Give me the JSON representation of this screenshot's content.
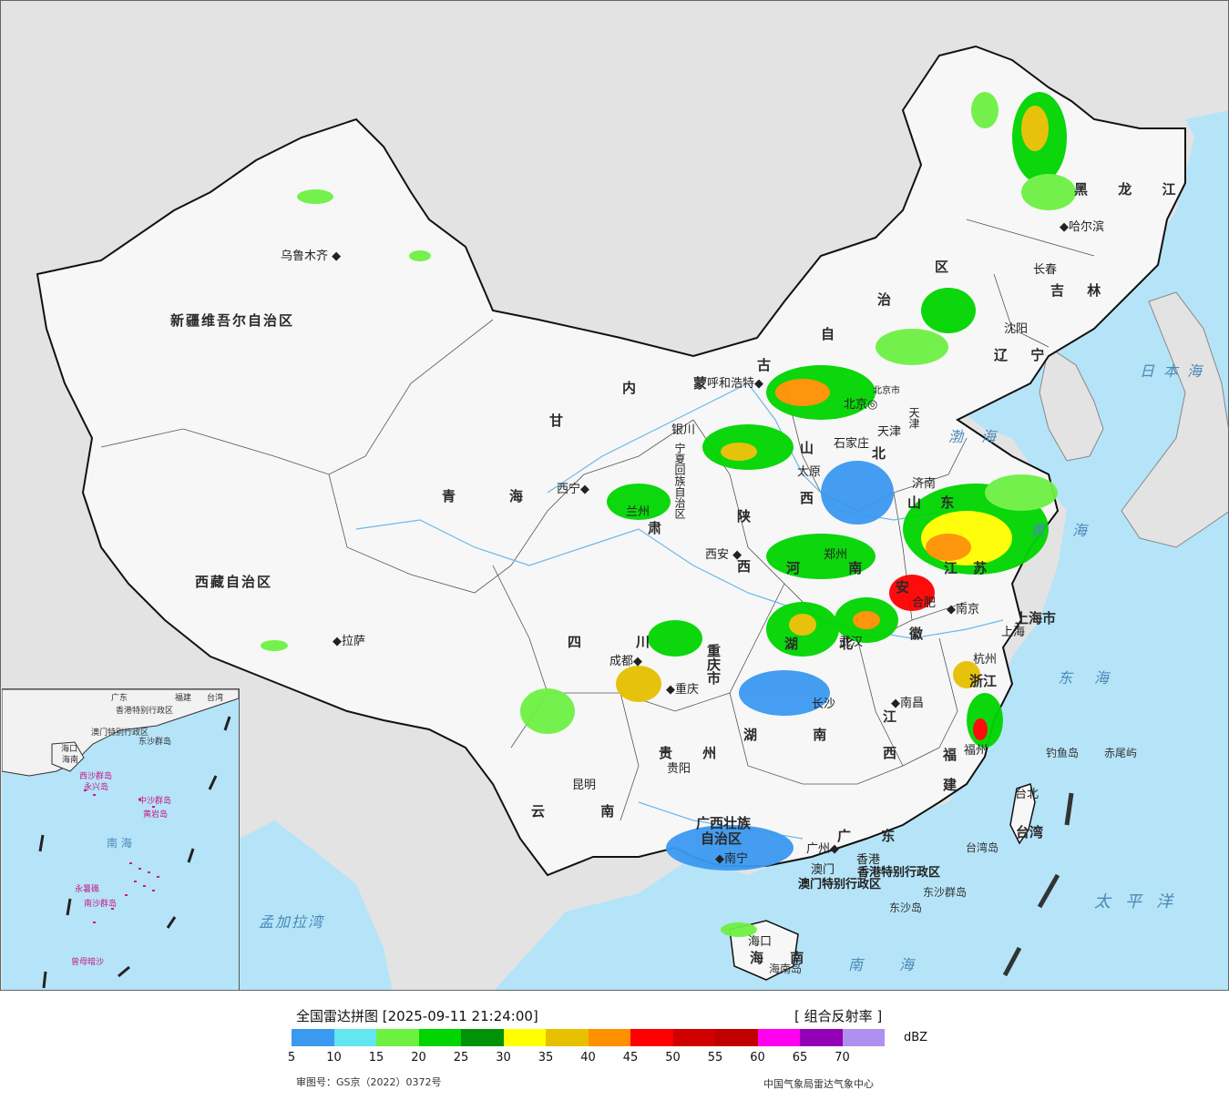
{
  "map": {
    "provinces": {
      "xinjiang": "新疆维吾尔自治区",
      "tibet": "西藏自治区",
      "qinghai_1": "青",
      "qinghai_2": "海",
      "gansu_1": "甘",
      "gansu_2": "肃",
      "nmg_1": "内",
      "nmg_2": "蒙",
      "nmg_3": "古",
      "nmg_4": "自",
      "nmg_5": "治",
      "nmg_6": "区",
      "heilongjiang": "黑 龙 江",
      "jilin": "吉 林",
      "liaoning": "辽 宁",
      "hebei": "北",
      "shanxi_1": "山",
      "shanxi_2": "西",
      "shaanxi_1": "陕",
      "shaanxi_2": "西",
      "shandong": "山 东",
      "henan": "河 南",
      "jiangsu": "江 苏",
      "anhui_1": "安",
      "anhui_2": "徽",
      "hubei": "湖 北",
      "sichuan_1": "四",
      "sichuan_2": "川",
      "chongqing": "重庆市",
      "hunan": "湖 南",
      "jiangxi_1": "江",
      "jiangxi_2": "西",
      "zhejiang": "浙江",
      "fujian_1": "福",
      "fujian_2": "建",
      "guizhou": "贵 州",
      "yunnan": "云 南",
      "guangxi_1": "广西壮族",
      "guangxi_2": "自治区",
      "guangdong": "广 东",
      "hainan": "海 南",
      "taiwan": "台湾",
      "shanghai": "上海市",
      "hongkong": "香港特别行政区",
      "macau": "澳门特别行政区",
      "ningxia": "宁夏回族自治区",
      "beijing": "北京市",
      "tianjin": "天津"
    },
    "cities": {
      "urumqi": "乌鲁木齐",
      "lhasa": "拉萨",
      "xining": "西宁",
      "yinchuan": "银川",
      "lanzhou": "兰州",
      "hohhot": "呼和浩特",
      "beijing": "北京",
      "tianjin": "天津",
      "shijiazhuang": "石家庄",
      "taiyuan": "太原",
      "jinan": "济南",
      "xian": "西安",
      "zhengzhou": "郑州",
      "hefei": "合肥",
      "nanjing": "南京",
      "shanghai": "上海",
      "hangzhou": "杭州",
      "wuhan": "武汉",
      "chengdu": "成都",
      "chongqing": "重庆",
      "changsha": "长沙",
      "nanchang": "南昌",
      "fuzhou": "福州",
      "guiyang": "贵阳",
      "kunming": "昆明",
      "nanning": "南宁",
      "guangzhou": "广州",
      "hongkong": "香港",
      "macau": "澳门",
      "haikou": "海口",
      "taipei": "台北",
      "shenyang": "沈阳",
      "changchun": "长春",
      "harbin": "哈尔滨"
    },
    "islands": {
      "diaoyu": "钓鱼岛",
      "chiwei": "赤尾屿",
      "taiwan_island": "台湾岛",
      "dongsha_qundao": "东沙群岛",
      "dongsha_dao": "东沙岛",
      "hainan_dao": "海南岛"
    },
    "seas": {
      "japan_sea": "日本海",
      "bohai": "渤海",
      "yellow_sea": "黄海",
      "east_sea": "东海",
      "pacific": "太平洋",
      "south_sea": "南海",
      "bay_bengal": "孟加拉湾"
    },
    "inset": {
      "guangdong": "广东",
      "fujian": "福建",
      "taiwan": "台湾",
      "hk": "香港特别行政区",
      "mo": "澳门特别行政区",
      "dongsha": "东沙群岛",
      "haikou": "海口",
      "hainan": "海南",
      "xisha": "西沙群岛",
      "yongxing": "永兴岛",
      "zhongsha": "中沙群岛",
      "huangyan": "黄岩岛",
      "nanhai": "南 海",
      "yongshu": "永暑礁",
      "nansha": "南沙群岛",
      "zengmu": "曾母暗沙"
    }
  },
  "legend": {
    "title": "全国雷达拼图 [2025-09-11 21:24:00]",
    "product": "[ 组合反射率 ]",
    "unit": "dBZ",
    "colors": [
      "#3b99f0",
      "#62e6f0",
      "#6ef043",
      "#00d500",
      "#00930a",
      "#ffff00",
      "#e7c000",
      "#ff9000",
      "#ff0000",
      "#d00000",
      "#c00000",
      "#ff00f0",
      "#9400b4",
      "#ad90f0"
    ],
    "ticks": [
      "5",
      "10",
      "15",
      "20",
      "25",
      "30",
      "35",
      "40",
      "45",
      "50",
      "55",
      "60",
      "65",
      "70"
    ],
    "approval": "审图号：GS京（2022）0372号",
    "producer": "中国气象局雷达气象中心"
  }
}
